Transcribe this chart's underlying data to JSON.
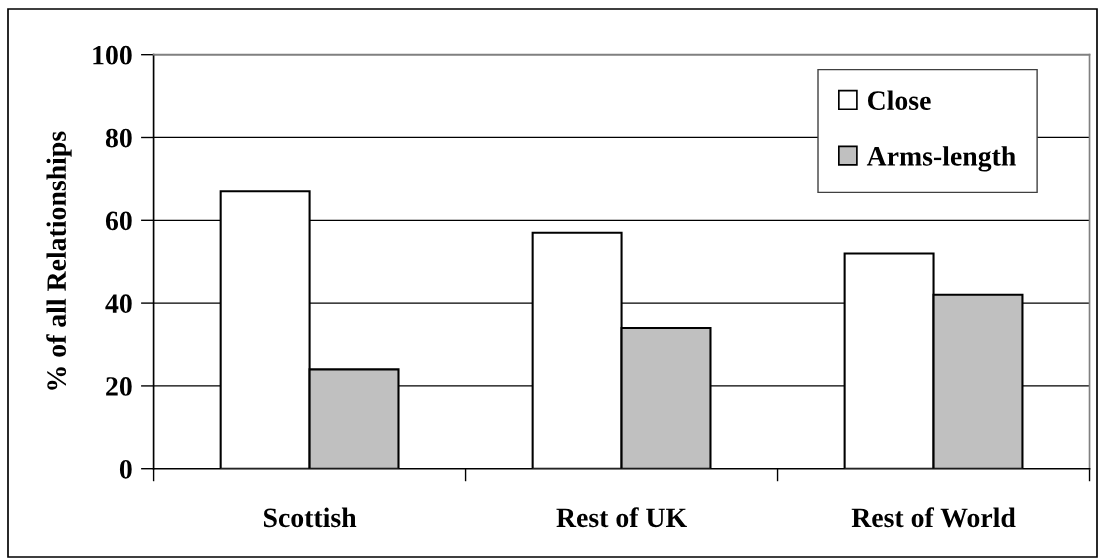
{
  "chart_data": {
    "type": "bar",
    "ylabel": "% of all Relationships",
    "categories": [
      "Scottish",
      "Rest of UK",
      "Rest of World"
    ],
    "series": [
      {
        "name": "Close",
        "color": "#ffffff",
        "values": [
          67,
          57,
          52
        ]
      },
      {
        "name": "Arms-length",
        "color": "#c0c0c0",
        "values": [
          24,
          34,
          42
        ]
      }
    ],
    "ylim": [
      0,
      100
    ],
    "yticks": [
      0,
      20,
      40,
      60,
      80,
      100
    ],
    "grid": "y",
    "legend": "top right"
  }
}
